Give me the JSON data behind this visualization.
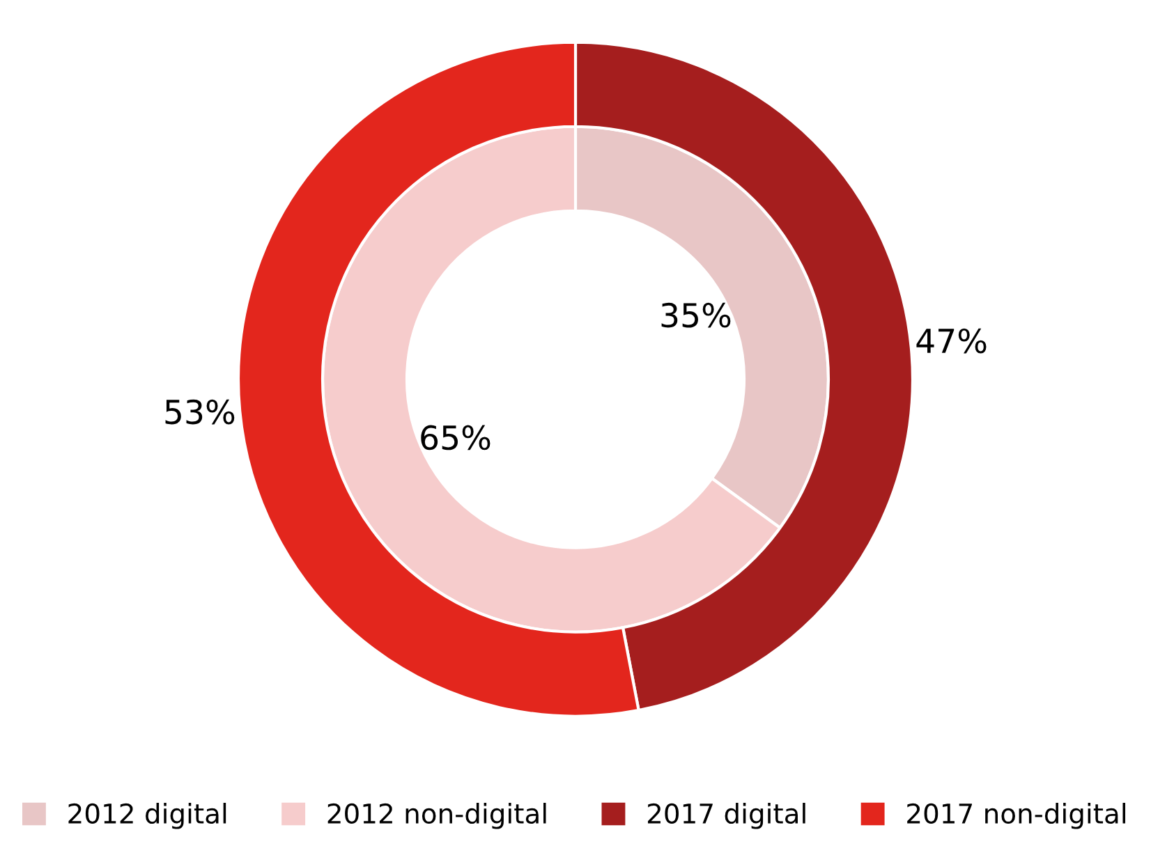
{
  "chart_data": {
    "type": "donut",
    "categories": [
      "2012 digital",
      "2012 non-digital",
      "2017 digital",
      "2017 non-digital"
    ],
    "series": [
      {
        "values": [
          35,
          65,
          null,
          null
        ],
        "value_labels": [
          "35%",
          "65%",
          null,
          null
        ],
        "colors": [
          "#e8c6c6",
          "#f6cccc",
          "#a51e1e",
          "#e3261d"
        ]
      },
      {
        "values": [
          null,
          null,
          47,
          53
        ],
        "value_labels": [
          null,
          null,
          "47%",
          "53%"
        ],
        "colors": [
          "#e8c6c6",
          "#f6cccc",
          "#a51e1e",
          "#e3261d"
        ]
      }
    ],
    "legend": "bottom"
  }
}
